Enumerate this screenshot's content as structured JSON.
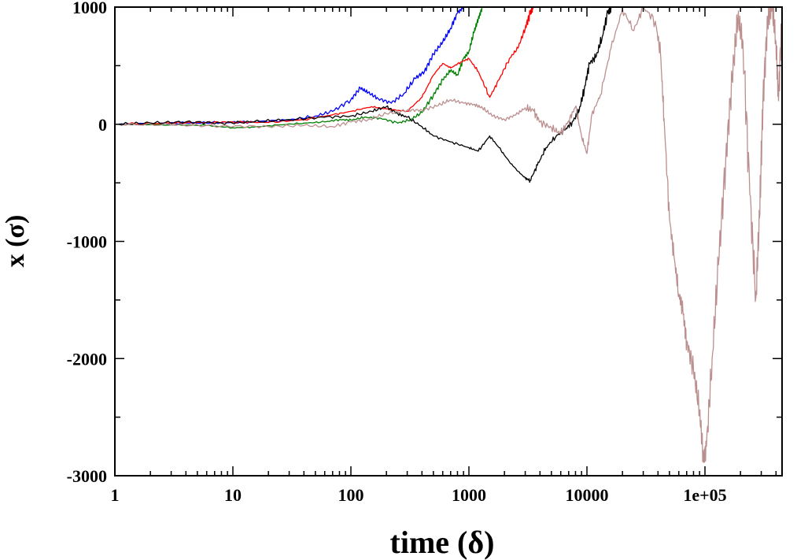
{
  "chart_data": {
    "type": "line",
    "xscale": "log",
    "xlabel": "time (δ)",
    "ylabel": "x (σ)",
    "xlim": [
      1,
      450000
    ],
    "ylim": [
      -3000,
      1000
    ],
    "x_ticks": [
      {
        "value": 1,
        "label": "1"
      },
      {
        "value": 10,
        "label": "10"
      },
      {
        "value": 100,
        "label": "100"
      },
      {
        "value": 1000,
        "label": "1000"
      },
      {
        "value": 10000,
        "label": "10000"
      },
      {
        "value": 100000,
        "label": "1e+05"
      }
    ],
    "y_ticks": [
      {
        "value": 1000,
        "label": "1000"
      },
      {
        "value": 0,
        "label": "0"
      },
      {
        "value": -1000,
        "label": "-1000"
      },
      {
        "value": -2000,
        "label": "-2000"
      },
      {
        "value": -3000,
        "label": "-3000"
      }
    ],
    "grid": false,
    "series": [
      {
        "color": "#0000ff",
        "points": [
          [
            1,
            0
          ],
          [
            2,
            5
          ],
          [
            4,
            10
          ],
          [
            8,
            15
          ],
          [
            15,
            20
          ],
          [
            30,
            35
          ],
          [
            50,
            70
          ],
          [
            70,
            110
          ],
          [
            100,
            210
          ],
          [
            120,
            310
          ],
          [
            140,
            270
          ],
          [
            170,
            220
          ],
          [
            220,
            180
          ],
          [
            280,
            260
          ],
          [
            350,
            390
          ],
          [
            420,
            450
          ],
          [
            500,
            600
          ],
          [
            600,
            700
          ],
          [
            700,
            820
          ],
          [
            800,
            950
          ],
          [
            900,
            1000
          ]
        ]
      },
      {
        "color": "#008000",
        "points": [
          [
            1,
            0
          ],
          [
            3,
            -5
          ],
          [
            6,
            -10
          ],
          [
            10,
            -30
          ],
          [
            15,
            -25
          ],
          [
            25,
            -5
          ],
          [
            40,
            10
          ],
          [
            60,
            20
          ],
          [
            80,
            40
          ],
          [
            100,
            35
          ],
          [
            130,
            60
          ],
          [
            180,
            50
          ],
          [
            250,
            10
          ],
          [
            320,
            40
          ],
          [
            400,
            100
          ],
          [
            500,
            250
          ],
          [
            600,
            380
          ],
          [
            700,
            460
          ],
          [
            800,
            420
          ],
          [
            900,
            560
          ],
          [
            1000,
            620
          ],
          [
            1100,
            780
          ],
          [
            1200,
            900
          ],
          [
            1300,
            1000
          ]
        ]
      },
      {
        "color": "#ff0000",
        "points": [
          [
            1,
            0
          ],
          [
            3,
            10
          ],
          [
            6,
            15
          ],
          [
            10,
            20
          ],
          [
            20,
            15
          ],
          [
            40,
            40
          ],
          [
            70,
            80
          ],
          [
            100,
            110
          ],
          [
            150,
            150
          ],
          [
            200,
            130
          ],
          [
            300,
            110
          ],
          [
            400,
            230
          ],
          [
            500,
            420
          ],
          [
            600,
            520
          ],
          [
            700,
            480
          ],
          [
            850,
            530
          ],
          [
            1000,
            560
          ],
          [
            1200,
            450
          ],
          [
            1500,
            230
          ],
          [
            1800,
            380
          ],
          [
            2200,
            560
          ],
          [
            2600,
            650
          ],
          [
            3000,
            820
          ],
          [
            3300,
            950
          ],
          [
            3500,
            1000
          ]
        ]
      },
      {
        "color": "#000000",
        "points": [
          [
            1,
            0
          ],
          [
            2,
            10
          ],
          [
            4,
            20
          ],
          [
            8,
            10
          ],
          [
            15,
            20
          ],
          [
            30,
            40
          ],
          [
            60,
            60
          ],
          [
            100,
            70
          ],
          [
            150,
            110
          ],
          [
            200,
            150
          ],
          [
            250,
            90
          ],
          [
            300,
            60
          ],
          [
            400,
            -20
          ],
          [
            500,
            -100
          ],
          [
            700,
            -150
          ],
          [
            1000,
            -200
          ],
          [
            1200,
            -230
          ],
          [
            1500,
            -100
          ],
          [
            1800,
            -200
          ],
          [
            2200,
            -320
          ],
          [
            2600,
            -400
          ],
          [
            3000,
            -460
          ],
          [
            3300,
            -480
          ],
          [
            3800,
            -350
          ],
          [
            4500,
            -200
          ],
          [
            5500,
            -100
          ],
          [
            6500,
            -50
          ],
          [
            7500,
            20
          ],
          [
            8500,
            100
          ],
          [
            9500,
            300
          ],
          [
            10500,
            520
          ],
          [
            12000,
            580
          ],
          [
            13500,
            750
          ],
          [
            15000,
            950
          ],
          [
            16000,
            1000
          ]
        ]
      },
      {
        "color": "#bc8f8f",
        "points": [
          [
            1,
            0
          ],
          [
            3,
            -5
          ],
          [
            8,
            -15
          ],
          [
            20,
            -20
          ],
          [
            40,
            -10
          ],
          [
            70,
            -20
          ],
          [
            100,
            20
          ],
          [
            140,
            40
          ],
          [
            200,
            90
          ],
          [
            300,
            120
          ],
          [
            400,
            120
          ],
          [
            550,
            160
          ],
          [
            700,
            210
          ],
          [
            900,
            180
          ],
          [
            1100,
            170
          ],
          [
            1300,
            140
          ],
          [
            1600,
            70
          ],
          [
            2000,
            40
          ],
          [
            2500,
            80
          ],
          [
            3000,
            140
          ],
          [
            3500,
            120
          ],
          [
            4000,
            20
          ],
          [
            5000,
            -30
          ],
          [
            6000,
            -80
          ],
          [
            7000,
            30
          ],
          [
            8000,
            150
          ],
          [
            9000,
            -100
          ],
          [
            10000,
            -250
          ],
          [
            11000,
            80
          ],
          [
            13000,
            250
          ],
          [
            16000,
            650
          ],
          [
            20000,
            980
          ],
          [
            25000,
            800
          ],
          [
            30000,
            1000
          ],
          [
            38000,
            880
          ],
          [
            42000,
            600
          ],
          [
            45000,
            50
          ],
          [
            50000,
            -800
          ],
          [
            55000,
            -1150
          ],
          [
            60000,
            -1450
          ],
          [
            65000,
            -1600
          ],
          [
            70000,
            -1850
          ],
          [
            80000,
            -2100
          ],
          [
            90000,
            -2450
          ],
          [
            97000,
            -2850
          ],
          [
            103000,
            -2750
          ],
          [
            115000,
            -2000
          ],
          [
            130000,
            -1200
          ],
          [
            150000,
            -300
          ],
          [
            170000,
            400
          ],
          [
            190000,
            900
          ],
          [
            210000,
            700
          ],
          [
            240000,
            -600
          ],
          [
            270000,
            -1480
          ],
          [
            290000,
            -800
          ],
          [
            310000,
            200
          ],
          [
            340000,
            900
          ],
          [
            370000,
            1000
          ],
          [
            400000,
            700
          ],
          [
            420000,
            200
          ],
          [
            450000,
            1000
          ]
        ]
      }
    ]
  }
}
